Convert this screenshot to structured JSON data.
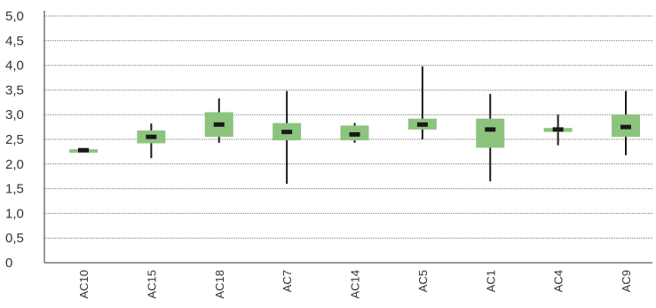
{
  "chart_data": {
    "type": "boxplot",
    "title": "",
    "xlabel": "",
    "ylabel": "",
    "ylim": [
      0,
      5
    ],
    "y_ticks": [
      "0",
      "0,5",
      "1,0",
      "1,5",
      "2,0",
      "2,5",
      "3,0",
      "3,5",
      "4,0",
      "4,5",
      "5,0"
    ],
    "y_tick_values": [
      0,
      0.5,
      1.0,
      1.5,
      2.0,
      2.5,
      3.0,
      3.5,
      4.0,
      4.5,
      5.0
    ],
    "grid": "horizontal dotted",
    "legend": "none",
    "categories": [
      "AC10",
      "AC15",
      "AC18",
      "AC7",
      "AC14",
      "AC5",
      "AC1",
      "AC4",
      "AC9"
    ],
    "whisker_low": [
      2.25,
      2.12,
      2.43,
      1.6,
      2.43,
      2.5,
      1.65,
      2.38,
      2.18
    ],
    "box_low": [
      2.23,
      2.42,
      2.55,
      2.48,
      2.48,
      2.7,
      2.33,
      2.65,
      2.55
    ],
    "median": [
      2.28,
      2.55,
      2.8,
      2.65,
      2.6,
      2.8,
      2.7,
      2.7,
      2.75
    ],
    "box_high": [
      2.3,
      2.68,
      3.05,
      2.83,
      2.78,
      2.92,
      2.92,
      2.73,
      3.0
    ],
    "whisker_high": [
      2.3,
      2.82,
      3.33,
      3.48,
      2.83,
      3.98,
      3.42,
      3.0,
      3.48
    ],
    "colors": {
      "box": "#8cc47e",
      "whisker": "#1a1a1a",
      "median": "#1a1a1a",
      "grid": "#777777",
      "axis": "#333333",
      "text": "#333333"
    }
  }
}
